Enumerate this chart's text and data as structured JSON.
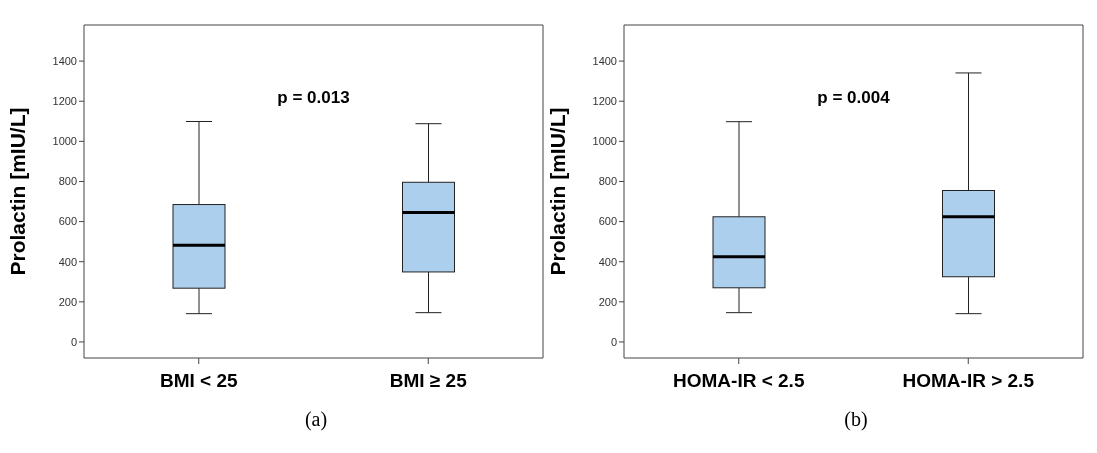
{
  "chart_data": [
    {
      "type": "box",
      "title": "(a)",
      "ylabel": "Prolactin [mIU/L]",
      "categories": [
        "BMI < 25",
        "BMI ≥ 25"
      ],
      "color": "#abcfec",
      "boxes": [
        {
          "low": 141,
          "q1": 268,
          "median": 482,
          "q3": 685,
          "high": 1099
        },
        {
          "low": 146,
          "q1": 349,
          "median": 645,
          "q3": 796,
          "high": 1088
        }
      ],
      "ylim": [
        -80,
        1580
      ],
      "yticks": [
        0,
        200,
        400,
        600,
        800,
        1000,
        1200,
        1400
      ],
      "annotations": [
        "p = 0.013"
      ]
    },
    {
      "type": "box",
      "title": "(b)",
      "ylabel": "Prolactin [mIU/L]",
      "categories": [
        "HOMA-IR < 2.5",
        "HOMA-IR > 2.5"
      ],
      "color": "#abcfec",
      "boxes": [
        {
          "low": 146,
          "q1": 270,
          "median": 425,
          "q3": 624,
          "high": 1098
        },
        {
          "low": 141,
          "q1": 325,
          "median": 624,
          "q3": 755,
          "high": 1341
        }
      ],
      "ylim": [
        -80,
        1580
      ],
      "yticks": [
        0,
        200,
        400,
        600,
        800,
        1000,
        1200,
        1400
      ],
      "annotations": [
        "p = 0.004"
      ]
    }
  ]
}
